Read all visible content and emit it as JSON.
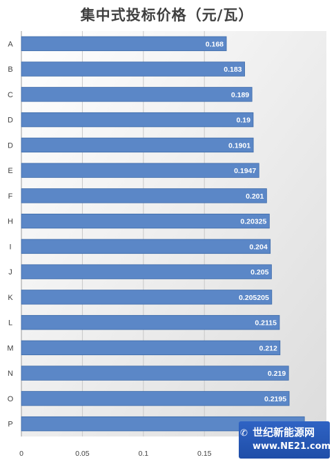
{
  "chart_data": {
    "type": "bar",
    "orientation": "horizontal",
    "title": "集中式投标价格（元/瓦）",
    "categories": [
      "A",
      "B",
      "C",
      "D",
      "D",
      "E",
      "F",
      "H",
      "I",
      "J",
      "K",
      "L",
      "M",
      "N",
      "O",
      "P"
    ],
    "values": [
      0.168,
      0.183,
      0.189,
      0.19,
      0.1901,
      0.1947,
      0.201,
      0.20325,
      0.204,
      0.205,
      0.205205,
      0.2115,
      0.212,
      0.219,
      0.2195,
      0.232
    ],
    "value_labels": [
      "0.168",
      "0.183",
      "0.189",
      "0.19",
      "0.1901",
      "0.1947",
      "0.201",
      "0.20325",
      "0.204",
      "0.205",
      "0.205205",
      "0.2115",
      "0.212",
      "0.219",
      "0.2195",
      ""
    ],
    "xlim": [
      0,
      0.25
    ],
    "x_ticks": [
      0,
      0.05,
      0.1,
      0.15
    ],
    "x_tick_labels": [
      "0",
      "0.05",
      "0.1",
      "0.15"
    ],
    "grid": true,
    "bar_color": "#5b87c7",
    "bar_border_color": "#3d6aa9",
    "value_label_color": "#ffffff",
    "legend": "none"
  },
  "watermark": {
    "text_cn": "世纪新能源网",
    "text_en": "www.NE21.com",
    "icon": "wechat-icon",
    "background": "#2f63c4"
  }
}
